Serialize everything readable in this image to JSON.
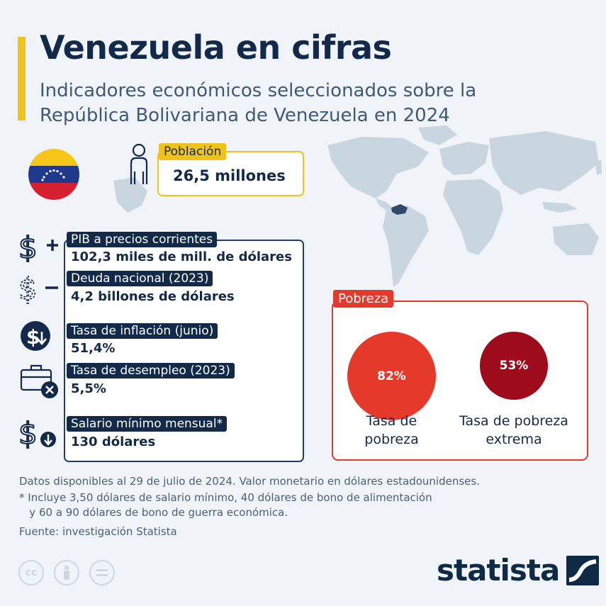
{
  "header": {
    "title": "Venezuela en cifras",
    "subtitle": "Indicadores económicos seleccionados sobre la República Bolivariana de Venezuela en 2024"
  },
  "population": {
    "label": "Población",
    "value": "26,5 millones"
  },
  "indicators": [
    {
      "icon": "dollar-plus-icon",
      "label": "PIB a precios corrientes",
      "value": "102,3 miles de mill. de dólares"
    },
    {
      "icon": "dollar-minus-icon",
      "label": "Deuda nacional (2023)",
      "value": "4,2 billones de dólares"
    },
    {
      "icon": "dollar-down-badge-icon",
      "label": "Tasa de inflación (junio)",
      "value": "51,4%"
    },
    {
      "icon": "briefcase-x-icon",
      "label": "Tasa de desempleo (2023)",
      "value": "5,5%"
    },
    {
      "icon": "dollar-down-arrow-icon",
      "label": "Salario mínimo mensual*",
      "value": "130 dólares"
    }
  ],
  "poverty": {
    "label": "Pobreza",
    "items": [
      {
        "value": "82%",
        "caption_line1": "Tasa de",
        "caption_line2": "pobreza",
        "color": "#e5392b"
      },
      {
        "value": "53%",
        "caption_line1": "Tasa de pobreza",
        "caption_line2": "extrema",
        "color": "#9e0c1b"
      }
    ]
  },
  "notes": {
    "line1": "Datos disponibles al 29 de julio de 2024. Valor monetario en dólares estadounidenses.",
    "line2": "* Incluye 3,50 dólares de salario mínimo, 40 dólares de bono de alimentación",
    "line3": "   y 60 a 90 dólares de bono de guerra económica.",
    "source": "Fuente: investigación Statista"
  },
  "footer": {
    "logo": "statista"
  },
  "colors": {
    "accent_yellow": "#f0c31a",
    "navy": "#12294a",
    "poverty_red": "#e33a2b",
    "extreme_red": "#9e0c1b",
    "map": "#c9d5df",
    "venezuela_highlight": "#2f4a6b"
  }
}
